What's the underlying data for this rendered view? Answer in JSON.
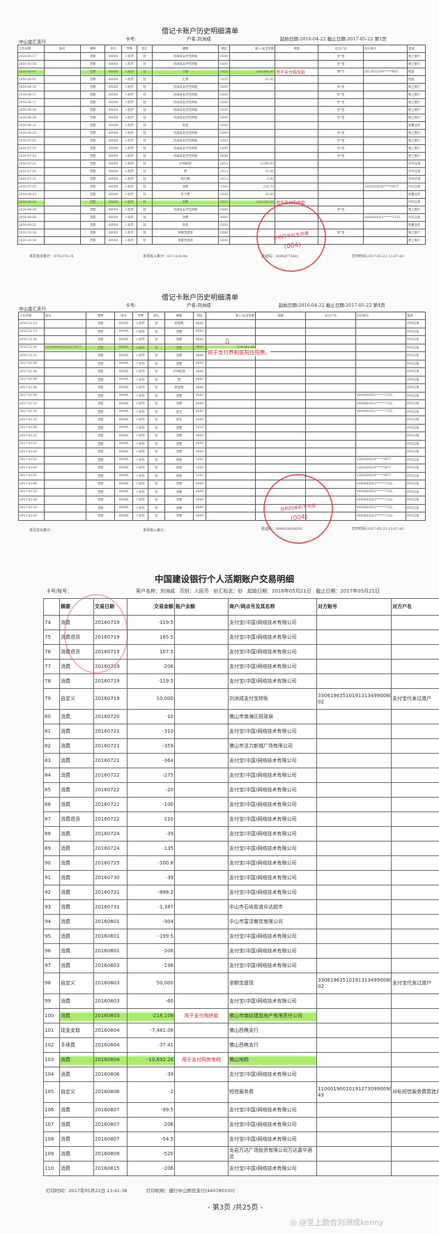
{
  "page1": {
    "title": "借记卡账户历史明细清单",
    "branch": "中山金汇支行",
    "card_label": "卡号:",
    "holder": "户名:刘洲成",
    "dates": "起始日期:2016-04-22   截止日期:2017-05-22   第1页",
    "columns": [
      "工作日期",
      "账号",
      "储种",
      "序号",
      "币种",
      "钞汇",
      "摘要",
      "地区",
      "收入/支出金额",
      "余额",
      "对方户名",
      "对方账号",
      "渠道"
    ],
    "rows": [
      [
        "2016-05-17",
        "",
        "活期",
        "00000",
        "人民币",
        "钞",
        "刘洲成支付宝转账",
        "0200",
        "",
        "",
        "文*金",
        "",
        "网上银行"
      ],
      [
        "2016-05-18",
        "",
        "活期",
        "00000",
        "人民币",
        "钞",
        "刘洲成支付宝转账",
        "0200",
        "",
        "",
        "文*金",
        "",
        "网上银行"
      ],
      [
        "2016-06-07",
        "",
        "活期",
        "00000",
        "人民币",
        "钞",
        "卡取",
        "1410",
        "-166,800.00",
        "",
        "傅*可",
        "2013022339*****0831",
        "柜面"
      ],
      [
        "2016-06-07",
        "",
        "活期",
        "00000",
        "人民币",
        "钞",
        "汇费",
        "1410",
        "-25.00",
        "",
        "",
        "",
        "柜面"
      ],
      [
        "2016-06-16",
        "",
        "活期",
        "00000",
        "人民币",
        "钞",
        "刘洲成支付宝转账",
        "0200",
        "",
        "",
        "文*金",
        "",
        "网上银行"
      ],
      [
        "2016-06-17",
        "",
        "活期",
        "00000",
        "人民币",
        "钞",
        "刘洲成支付宝转账",
        "0200",
        "",
        "",
        "文*金",
        "",
        "网上银行"
      ],
      [
        "2016-06-17",
        "",
        "活期",
        "00000",
        "人民币",
        "钞",
        "刘洲成支付宝转账",
        "0200",
        "",
        "",
        "文*金",
        "",
        "网上银行"
      ],
      [
        "2016-06-18",
        "",
        "活期",
        "00000",
        "人民币",
        "钞",
        "刘洲成支付宝转账",
        "0200",
        "",
        "",
        "文*金",
        "",
        "网上银行"
      ],
      [
        "2016-06-18",
        "",
        "活期",
        "00000",
        "人民币",
        "钞",
        "刘洲成支付宝转账",
        "0200",
        "",
        "",
        "文*金",
        "",
        "网上银行"
      ],
      [
        "2016-06-21",
        "",
        "活期",
        "00000",
        "人民币",
        "钞",
        "利息",
        "0200",
        "",
        "",
        "",
        "",
        "批量业务"
      ],
      [
        "2016-06-22",
        "",
        "活期",
        "00000",
        "人民币",
        "钞",
        "刘洲成支付宝转账",
        "0200",
        "",
        "",
        "文*金",
        "",
        "网上银行"
      ],
      [
        "2016-07-01",
        "",
        "活期",
        "00000",
        "人民币",
        "钞",
        "刘洲成支付宝转账",
        "0200",
        "",
        "",
        "文*金",
        "",
        "网上银行"
      ],
      [
        "2016-07-03",
        "",
        "活期",
        "00000",
        "人民币",
        "钞",
        "刘洲成支付宝转账",
        "0200",
        "",
        "",
        "文*金",
        "",
        "网上银行"
      ],
      [
        "2016-07-03",
        "",
        "活期",
        "00000",
        "人民币",
        "钞",
        "刘洲成支付宝转账",
        "0200",
        "",
        "",
        "文*金",
        "",
        "网上银行"
      ],
      [
        "2016-07-21",
        "",
        "活期",
        "00000",
        "人民币",
        "钞",
        "ATM取款",
        "2013",
        "-5,000.00",
        "",
        "",
        "",
        "ATM交易"
      ],
      [
        "2016-07-21",
        "",
        "活期",
        "00000",
        "人民币",
        "钞",
        "费",
        "2013",
        "-15.00",
        "",
        "",
        "",
        "ATM交易"
      ],
      [
        "2016-07-21",
        "",
        "活期",
        "00000",
        "人民币",
        "钞",
        "跨行费",
        "2013",
        "-2.00",
        "",
        "",
        "",
        "ATM交易"
      ],
      [
        "2016-07-25",
        "",
        "活期",
        "00000",
        "人民币",
        "钞",
        "消费",
        "1202",
        "-232.70",
        "",
        "",
        "1301020419*****0977",
        "POS交易"
      ],
      [
        "2016-08-03",
        "",
        "活期",
        "00000",
        "人民币",
        "钞",
        "年卡费",
        "0200",
        "-10.00",
        "",
        "",
        "",
        "批量业务"
      ],
      [
        "2016-08-03",
        "",
        "活期",
        "00000",
        "人民币",
        "钞",
        "消费",
        "2013",
        "-526,000.00",
        "",
        "",
        "",
        "POS交易"
      ],
      [
        "2016-08-18",
        "",
        "活期",
        "00000",
        "人民币",
        "钞",
        "刘洲成支付宝转账",
        "0200",
        "",
        "",
        "文*金",
        "",
        "网上银行"
      ],
      [
        "2016-09-08",
        "",
        "活期",
        "00000",
        "人民币",
        "钞",
        "消费",
        "4000",
        "",
        "",
        "",
        "4000004051******7315",
        "POS交易"
      ],
      [
        "2016-09-21",
        "",
        "活期",
        "00000",
        "人民币",
        "钞",
        "利息",
        "0200",
        "",
        "",
        "",
        "",
        "批量业务"
      ],
      [
        "2016-10-18",
        "",
        "活期",
        "00000",
        "人民币",
        "钞",
        "余额宝提现",
        "0200",
        "",
        "",
        "文*金",
        "",
        "网上银行"
      ],
      [
        "2016-10-18",
        "",
        "活期",
        "00000",
        "人民币",
        "钞",
        "余额宝提现",
        "0200",
        "",
        "",
        "",
        "",
        "网上银行"
      ]
    ],
    "highlighted_rows": [
      2,
      19
    ],
    "annotations": [
      "用于支付购车款",
      "用于支付购房款"
    ],
    "footer": {
      "expense_total": "本页支出累计：678,070.35",
      "income_total": "本页收入累计：637,414.94",
      "verify_code": "验证码：3098(F7540)",
      "print_time": "打印时间:2017-05-22 13:07:43"
    },
    "stamp": {
      "text": "自助回单机专用章",
      "code": "(004)"
    }
  },
  "page2": {
    "title": "借记卡账户历史明细清单",
    "branch": "中山金汇支行",
    "card_label": "卡号:",
    "holder": "户名:刘洲成",
    "dates": "起始日期:2016-04-22   截止日期:2017-05-22   第4页",
    "columns": [
      "工作日期",
      "账号",
      "储种",
      "序号",
      "币种",
      "钞汇",
      "摘要",
      "地区",
      "收入/支出金额",
      "余额",
      "对方户名",
      "对方账号",
      "渠道"
    ],
    "rows": [
      [
        "2016-12-23",
        "",
        "活期",
        "00000",
        "人民币",
        "钞",
        "跨境费",
        "6600",
        "",
        "",
        "",
        "",
        "ATM交易"
      ],
      [
        "2016-12-23",
        "",
        "活期",
        "00000",
        "人民币",
        "钞",
        "消费",
        "6600",
        "",
        "",
        "",
        "",
        "POS交易"
      ],
      [
        "2016-12-26",
        "",
        "活期",
        "00000",
        "人民币",
        "钞",
        "消费",
        "6600",
        "",
        "",
        "",
        "",
        "POS交易"
      ],
      [
        "2016-12-26",
        "6226096601102479317",
        "活期",
        "00000",
        "人民币",
        "钞",
        "消费",
        "6600",
        "-118,862.88",
        "",
        "",
        "",
        "POS交易"
      ],
      [
        "2016-12-31",
        "",
        "活期",
        "00000",
        "人民币",
        "钞",
        "消费",
        "4600",
        "",
        "",
        "",
        "",
        "POS交易"
      ],
      [
        "2017-01-08",
        "",
        "活期",
        "00000",
        "人民币",
        "钞",
        "消费",
        "4600",
        "",
        "",
        "",
        "",
        "POS交易"
      ],
      [
        "2017-01-08",
        "",
        "活期",
        "00000",
        "人民币",
        "钞",
        "ATM取款",
        "4600",
        "",
        "",
        "",
        "",
        "ATM交易"
      ],
      [
        "2017-01-08",
        "",
        "活期",
        "00000",
        "人民币",
        "钞",
        "费",
        "4600",
        "",
        "",
        "",
        "",
        "ATM交易"
      ],
      [
        "2017-01-08",
        "",
        "活期",
        "00000",
        "人民币",
        "钞",
        "跨境费",
        "4600",
        "",
        "",
        "",
        "",
        "ATM交易"
      ],
      [
        "2017-01-08",
        "",
        "活期",
        "00000",
        "人民币",
        "钞",
        "消费",
        "4000",
        "",
        "",
        "",
        "4000004051******7315",
        "POS交易"
      ],
      [
        "2017-01-11",
        "",
        "活期",
        "00000",
        "人民币",
        "钞",
        "消费",
        "4000",
        "",
        "",
        "",
        "4000004051******7315",
        "POS交易"
      ],
      [
        "2017-01-20",
        "",
        "活期",
        "00000",
        "人民币",
        "钞",
        "退货",
        "4000",
        "",
        "",
        "",
        "4000004051******7315",
        "POS交易"
      ],
      [
        "2017-01-20",
        "",
        "活期",
        "00000",
        "人民币",
        "钞",
        "退货",
        "4000",
        "",
        "",
        "",
        "",
        "POS交易"
      ],
      [
        "2017-02-08",
        "",
        "活期",
        "00000",
        "人民币",
        "钞",
        "消费",
        "1410",
        "",
        "",
        "",
        "",
        "POS交易"
      ],
      [
        "2017-02-21",
        "",
        "活期",
        "00000",
        "人民币",
        "钞",
        "消费",
        "4600",
        "",
        "",
        "",
        "",
        "POS交易"
      ],
      [
        "2017-03-02",
        "",
        "活期",
        "00000",
        "人民币",
        "钞",
        "消费",
        "4600",
        "",
        "",
        "",
        "",
        "POS交易"
      ],
      [
        "2017-03-02",
        "",
        "活期",
        "00000",
        "人民币",
        "钞",
        "消费",
        "4600",
        "",
        "",
        "",
        "",
        "POS交易"
      ],
      [
        "2017-03-02",
        "",
        "活期",
        "00000",
        "人民币",
        "钞",
        "转账",
        "1202",
        "",
        "",
        "",
        "1301020419*****0977",
        "POS交易"
      ],
      [
        "2017-03-04",
        "",
        "活期",
        "00000",
        "人民币",
        "钞",
        "转账",
        "1202",
        "",
        "",
        "",
        "1301020419*****0977",
        "POS交易"
      ],
      [
        "2017-03-05",
        "",
        "活期",
        "00000",
        "人民币",
        "钞",
        "转账",
        "1202",
        "",
        "",
        "",
        "1301020419*****0977",
        "POS交易"
      ],
      [
        "2017-03-06",
        "",
        "活期",
        "00000",
        "人民币",
        "钞",
        "消费",
        "4000",
        "",
        "",
        "",
        "4000004051******7315",
        "POS交易"
      ],
      [
        "2017-03-10",
        "",
        "活期",
        "00000",
        "人民币",
        "钞",
        "消费",
        "4000",
        "",
        "",
        "",
        "4000004051******7315",
        "POS交易"
      ],
      [
        "2017-03-18",
        "",
        "活期",
        "00000",
        "人民币",
        "钞",
        "消费",
        "4000",
        "",
        "",
        "",
        "4000004051******7315",
        "POS交易"
      ],
      [
        "2017-03-19",
        "",
        "活期",
        "00000",
        "人民币",
        "钞",
        "消费",
        "4000",
        "",
        "",
        "",
        "4000004051******7315",
        "POS交易"
      ],
      [
        "2017-03-19",
        "",
        "活期",
        "00000",
        "人民币",
        "钞",
        "消费",
        "4000",
        "",
        "",
        "",
        "4000004051******7315",
        "POS交易"
      ]
    ],
    "highlighted_rows": [
      3
    ],
    "annotation": "用于支付养和医院住院费。",
    "footer": {
      "expense_total": "本页支出累计：",
      "income_total": "本页收入累计：",
      "verify_code": "验证码：384920000026",
      "print_time": "打印时间:2017-05-22 13:07:43"
    },
    "stamp": {
      "text": "自助回单机专用章",
      "code": "(004)"
    }
  },
  "page3": {
    "title": "中国建设银行个人活期账户交易明细",
    "card_label": "卡号/账号：",
    "info": "客户名称：刘洲成   币别：人民币   钞汇标志：钞   起始日期：2016年05月21日   截止日期：2017年05月21日",
    "columns": [
      "",
      "摘要",
      "交易日期",
      "交易金额",
      "账户余额",
      "商户/网点号及其名称",
      "对方账号",
      "对方户名"
    ],
    "rows": [
      [
        "74",
        "消费",
        "20160719",
        "-119.5",
        "",
        "支付宝(中国)网络技术有限公司",
        "",
        ""
      ],
      [
        "75",
        "消费退货",
        "20160719",
        "185.5",
        "",
        "支付宝(中国)网络技术有限公司",
        "",
        ""
      ],
      [
        "76",
        "消费退货",
        "20160719",
        "107.5",
        "",
        "支付宝(中国)网络技术有限公司",
        "",
        ""
      ],
      [
        "77",
        "消费",
        "20160719",
        "-206",
        "",
        "支付宝(中国)网络技术有限公司",
        "",
        ""
      ],
      [
        "78",
        "消费",
        "20160719",
        "-119.5",
        "",
        "支付宝(中国)网络技术有限公司",
        "",
        ""
      ],
      [
        "79",
        "自定义",
        "20160719",
        "10,000",
        "",
        "刘洲成支付宝转账",
        "330619635101913134990080000 02",
        "支付宝代发过渡户"
      ],
      [
        "80",
        "消费",
        "20160720",
        "-10",
        "",
        "佛山市南海区财政局",
        "",
        ""
      ],
      [
        "81",
        "消费",
        "20160721",
        "-310",
        "",
        "支付宝(中国)网络技术有限公司",
        "",
        ""
      ],
      [
        "82",
        "消费",
        "20160721",
        "-359",
        "",
        "佛山市活力新城广场有限公司",
        "",
        ""
      ],
      [
        "83",
        "消费",
        "20160721",
        "-364",
        "",
        "支付宝(中国)网络技术有限公司",
        "",
        ""
      ],
      [
        "84",
        "消费",
        "20160722",
        "-275",
        "",
        "支付宝(中国)网络技术有限公司",
        "",
        ""
      ],
      [
        "85",
        "消费",
        "20160722",
        "-20",
        "",
        "支付宝(中国)网络技术有限公司",
        "",
        ""
      ],
      [
        "86",
        "消费",
        "20160722",
        "-100",
        "",
        "支付宝(中国)网络技术有限公司",
        "",
        ""
      ],
      [
        "87",
        "消费退货",
        "20160722",
        "110",
        "",
        "支付宝(中国)网络技术有限公司",
        "",
        ""
      ],
      [
        "88",
        "消费",
        "20160724",
        "-39",
        "",
        "支付宝(中国)网络技术有限公司",
        "",
        ""
      ],
      [
        "89",
        "消费",
        "20160724",
        "-135",
        "",
        "支付宝(中国)网络技术有限公司",
        "",
        ""
      ],
      [
        "90",
        "消费",
        "20160725",
        "-100.8",
        "",
        "支付宝(中国)网络技术有限公司",
        "",
        ""
      ],
      [
        "91",
        "消费",
        "20160730",
        "-39",
        "",
        "支付宝(中国)网络技术有限公司",
        "",
        ""
      ],
      [
        "92",
        "消费",
        "20160731",
        "-898.2",
        "",
        "支付宝(中国)网络技术有限公司",
        "",
        ""
      ],
      [
        "93",
        "消费",
        "20160731",
        "-1,387",
        "",
        "中山市石岐街道众达超市",
        "",
        ""
      ],
      [
        "94",
        "消费",
        "20160801",
        "-304",
        "",
        "中山市富淳餐饮有限公司",
        "",
        ""
      ],
      [
        "95",
        "消费",
        "20160801",
        "-199.5",
        "",
        "支付宝(中国)网络技术有限公司",
        "",
        ""
      ],
      [
        "96",
        "消费",
        "20160801",
        "-206",
        "",
        "支付宝(中国)网络技术有限公司",
        "",
        ""
      ],
      [
        "97",
        "消费",
        "20160803",
        "-198",
        "",
        "支付宝(中国)网络技术有限公司",
        "",
        ""
      ],
      [
        "98",
        "自定义",
        "20160803",
        "50,000",
        "",
        "余额宝提现",
        "330619635101913134990080000 02",
        "支付宝代发过渡户"
      ],
      [
        "99",
        "消费",
        "20160803",
        "-60",
        "",
        "支付宝(中国)网络技术有限公司",
        "",
        ""
      ],
      [
        "100",
        "消费",
        "20160803",
        "-218,108",
        "用于支付购房款",
        "佛山市南纺建投地产有限责任公司",
        "",
        ""
      ],
      [
        "101",
        "现金支取",
        "20160804",
        "-7,481.08",
        "",
        "佛山西樵支行",
        "",
        ""
      ],
      [
        "102",
        "手续费",
        "20160804",
        "-37.41",
        "",
        "佛山西樵支行",
        "",
        ""
      ],
      [
        "103",
        "消费",
        "20160804",
        "-10,692.26",
        "用于支付购房地税",
        "佛山地税",
        "",
        ""
      ],
      [
        "104",
        "消费",
        "20160806",
        "-39",
        "",
        "支付宝(中国)网络技术有限公司",
        "",
        ""
      ],
      [
        "105",
        "自定义",
        "20160806",
        "-2",
        "",
        "短信服务费",
        "110001900101912730990090000 49",
        "对私短信服务费暂挂户"
      ],
      [
        "106",
        "消费",
        "20160807",
        "-99.5",
        "",
        "支付宝(中国)网络技术有限公司",
        "",
        ""
      ],
      [
        "107",
        "消费",
        "20160807",
        "-206",
        "",
        "支付宝(中国)网络技术有限公司",
        "",
        ""
      ],
      [
        "108",
        "消费",
        "20160807",
        "-54.5",
        "",
        "支付宝(中国)网络技术有限公司",
        "",
        ""
      ],
      [
        "109",
        "消费",
        "20160809",
        "-520",
        "",
        "龙岩万达广场投资有限公司万达嘉华酒店",
        "",
        ""
      ],
      [
        "110",
        "消费",
        "20160815",
        "-206",
        "",
        "支付宝(中国)网络技术有限公司",
        "",
        ""
      ]
    ],
    "highlighted_rows": [
      26,
      29
    ],
    "print_time": "打印时间：2017年05月22日 13:41:38",
    "print_org": "打印机构：建行中山熙信支行[440780330]",
    "page_number": "- 第3页 /共25页 -"
  },
  "watermark": "@至上励合刘洲成kenny",
  "colors": {
    "highlight": "#8ce63c",
    "annotation": "#d8232a",
    "stamp": "#dc323c"
  }
}
